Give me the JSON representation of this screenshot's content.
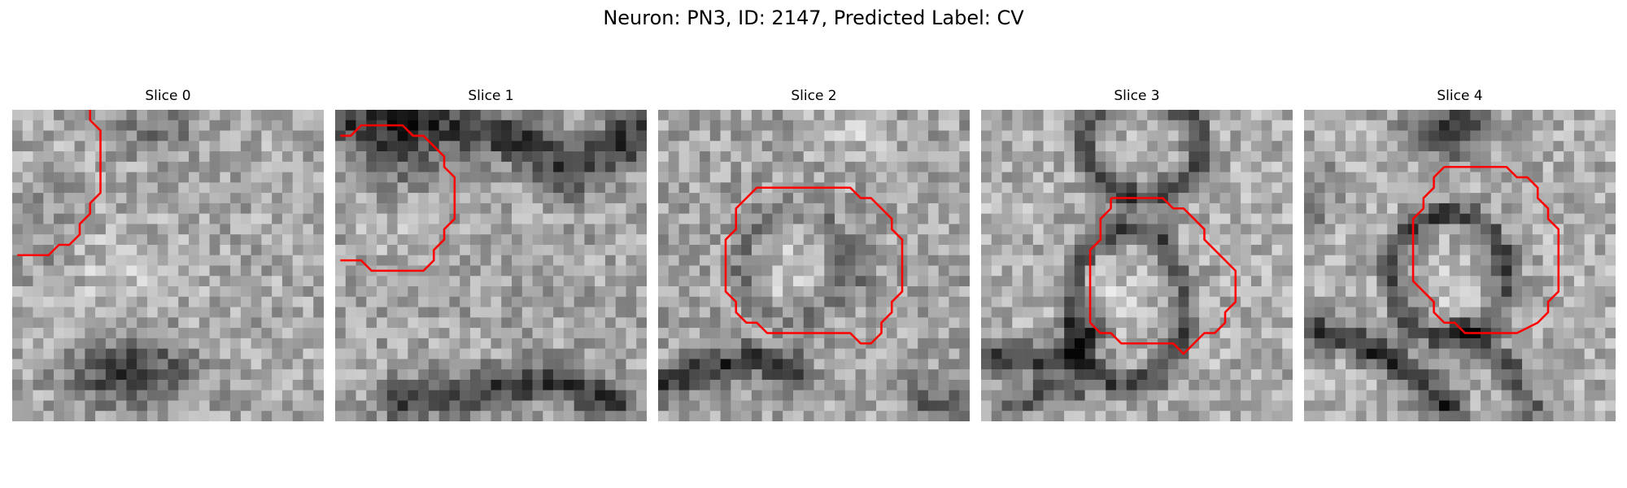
{
  "figure": {
    "title": "Neuron: PN3, ID: 2147, Predicted Label: CV",
    "contour_color": "#ff0000"
  },
  "slices": [
    {
      "label": "Slice 0"
    },
    {
      "label": "Slice 1"
    },
    {
      "label": "Slice 2"
    },
    {
      "label": "Slice 3"
    },
    {
      "label": "Slice 4"
    }
  ]
}
